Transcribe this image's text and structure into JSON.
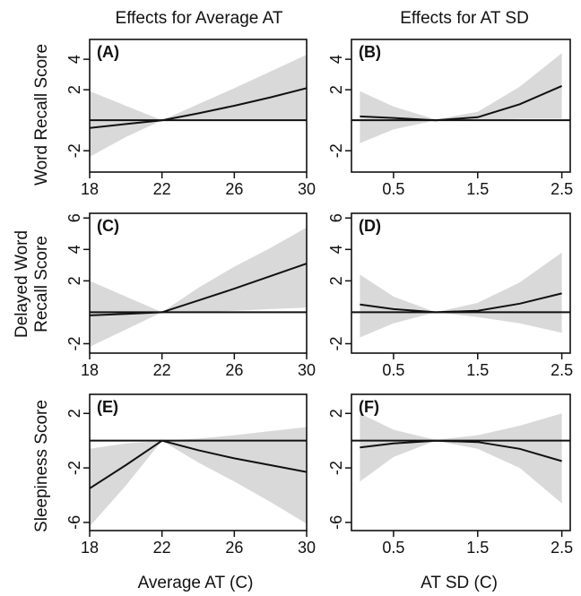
{
  "column_titles": [
    "Effects for Average AT",
    "Effects for AT SD"
  ],
  "row_ylabels": [
    [
      "Word Recall Score"
    ],
    [
      "Delayed Word",
      "Recall Score"
    ],
    [
      "Sleepiness Score"
    ]
  ],
  "xlabels": [
    "Average AT (C)",
    "AT SD (C)"
  ],
  "chart_data": [
    {
      "type": "area",
      "panel": "(A)",
      "x": [
        18,
        20,
        22,
        24,
        26,
        28,
        30
      ],
      "series": [
        {
          "role": "estimate",
          "values": [
            -0.5,
            -0.25,
            0,
            0.45,
            0.95,
            1.5,
            2.1
          ]
        },
        {
          "role": "lower",
          "values": [
            -2.4,
            -1.1,
            0,
            -0.05,
            0.0,
            0.0,
            0.0
          ]
        },
        {
          "role": "upper",
          "values": [
            1.9,
            0.95,
            0,
            1.05,
            2.1,
            3.2,
            4.3
          ]
        }
      ],
      "xlim": [
        18,
        30
      ],
      "ylim": [
        -3.4,
        5.3
      ],
      "xticks": [
        "18",
        "22",
        "26",
        "30"
      ],
      "xtick_values": [
        18,
        22,
        26,
        30
      ],
      "yticks": [
        "-2",
        "2",
        "4"
      ],
      "ytick_values": [
        -2,
        2,
        4
      ]
    },
    {
      "type": "area",
      "panel": "(B)",
      "x": [
        0.1,
        0.5,
        1.0,
        1.5,
        2.0,
        2.5
      ],
      "series": [
        {
          "role": "estimate",
          "values": [
            0.25,
            0.15,
            0.0,
            0.2,
            1.05,
            2.25
          ]
        },
        {
          "role": "lower",
          "values": [
            -1.5,
            -0.6,
            0.0,
            0.0,
            0.1,
            0.1
          ]
        },
        {
          "role": "upper",
          "values": [
            1.9,
            0.9,
            0.05,
            0.55,
            2.2,
            4.4
          ]
        }
      ],
      "xlim": [
        0.0,
        2.6
      ],
      "ylim": [
        -3.4,
        5.3
      ],
      "xticks": [
        "0.5",
        "1.5",
        "2.5"
      ],
      "xtick_values": [
        0.5,
        1.5,
        2.5
      ],
      "yticks": [
        "-2",
        "2",
        "4"
      ],
      "ytick_values": [
        -2,
        2,
        4
      ]
    },
    {
      "type": "area",
      "panel": "(C)",
      "x": [
        18,
        20,
        22,
        24,
        26,
        28,
        30
      ],
      "series": [
        {
          "role": "estimate",
          "values": [
            -0.2,
            -0.1,
            0,
            0.75,
            1.5,
            2.3,
            3.1
          ]
        },
        {
          "role": "lower",
          "values": [
            -2.2,
            -1.1,
            0,
            0.0,
            0.1,
            0.2,
            0.3
          ]
        },
        {
          "role": "upper",
          "values": [
            2.0,
            1.0,
            0,
            1.55,
            2.9,
            4.1,
            5.4
          ]
        }
      ],
      "xlim": [
        18,
        30
      ],
      "ylim": [
        -2.6,
        6.3
      ],
      "xticks": [
        "18",
        "22",
        "26",
        "30"
      ],
      "xtick_values": [
        18,
        22,
        26,
        30
      ],
      "yticks": [
        "-2",
        "2",
        "4",
        "6"
      ],
      "ytick_values": [
        -2,
        2,
        4,
        6
      ]
    },
    {
      "type": "area",
      "panel": "(D)",
      "x": [
        0.1,
        0.5,
        1.0,
        1.5,
        2.0,
        2.5
      ],
      "series": [
        {
          "role": "estimate",
          "values": [
            0.5,
            0.2,
            0.0,
            0.1,
            0.55,
            1.2
          ]
        },
        {
          "role": "lower",
          "values": [
            -1.6,
            -0.7,
            0.0,
            -0.3,
            -0.7,
            -1.3
          ]
        },
        {
          "role": "upper",
          "values": [
            2.4,
            1.0,
            0.0,
            0.6,
            1.9,
            3.8
          ]
        }
      ],
      "xlim": [
        0.0,
        2.6
      ],
      "ylim": [
        -2.6,
        6.3
      ],
      "xticks": [
        "0.5",
        "1.5",
        "2.5"
      ],
      "xtick_values": [
        0.5,
        1.5,
        2.5
      ],
      "yticks": [
        "-2",
        "2",
        "4",
        "6"
      ],
      "ytick_values": [
        -2,
        2,
        4,
        6
      ]
    },
    {
      "type": "area",
      "panel": "(E)",
      "x": [
        18,
        20,
        22,
        24,
        26,
        28,
        30
      ],
      "series": [
        {
          "role": "estimate",
          "values": [
            -3.5,
            -1.8,
            0,
            -0.7,
            -1.3,
            -1.8,
            -2.3
          ]
        },
        {
          "role": "lower",
          "values": [
            -6.3,
            -3.3,
            0,
            -1.6,
            -3.0,
            -4.5,
            -6.1
          ]
        },
        {
          "role": "upper",
          "values": [
            -0.6,
            -0.2,
            0,
            0.15,
            0.4,
            0.7,
            1.0
          ]
        }
      ],
      "xlim": [
        18,
        30
      ],
      "ylim": [
        -6.6,
        3.4
      ],
      "xticks": [
        "18",
        "22",
        "26",
        "30"
      ],
      "xtick_values": [
        18,
        22,
        26,
        30
      ],
      "yticks": [
        "-6",
        "-2",
        "2"
      ],
      "ytick_values": [
        -6,
        -2,
        2
      ]
    },
    {
      "type": "area",
      "panel": "(F)",
      "x": [
        0.1,
        0.5,
        1.0,
        1.5,
        2.0,
        2.5
      ],
      "series": [
        {
          "role": "estimate",
          "values": [
            -0.5,
            -0.2,
            0.0,
            -0.1,
            -0.6,
            -1.5
          ]
        },
        {
          "role": "lower",
          "values": [
            -3.0,
            -1.2,
            0.0,
            -0.6,
            -2.0,
            -4.6
          ]
        },
        {
          "role": "upper",
          "values": [
            2.0,
            0.8,
            0.05,
            0.4,
            1.1,
            2.0
          ]
        }
      ],
      "xlim": [
        0.0,
        2.6
      ],
      "ylim": [
        -6.6,
        3.4
      ],
      "xticks": [
        "0.5",
        "1.5",
        "2.5"
      ],
      "xtick_values": [
        0.5,
        1.5,
        2.5
      ],
      "yticks": [
        "-6",
        "-2",
        "2"
      ],
      "ytick_values": [
        -6,
        -2,
        2
      ]
    }
  ]
}
